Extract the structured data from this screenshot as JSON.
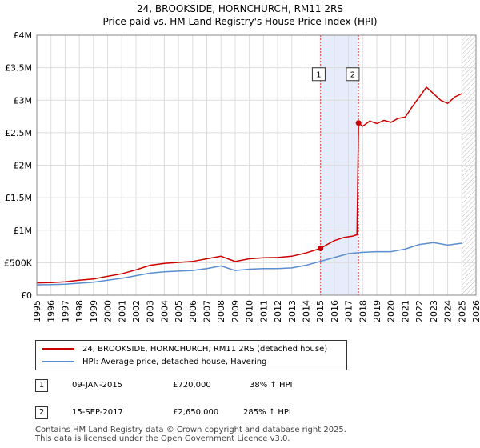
{
  "chart_data": {
    "type": "line",
    "title": "24, BROOKSIDE, HORNCHURCH, RM11 2RS",
    "subtitle": "Price paid vs. HM Land Registry's House Price Index (HPI)",
    "xlim": [
      1995,
      2026
    ],
    "ylim": [
      0,
      4000000
    ],
    "x_ticks": [
      "1995",
      "1996",
      "1997",
      "1998",
      "1999",
      "2000",
      "2001",
      "2002",
      "2003",
      "2004",
      "2005",
      "2006",
      "2007",
      "2008",
      "2009",
      "2010",
      "2011",
      "2012",
      "2013",
      "2014",
      "2015",
      "2016",
      "2017",
      "2018",
      "2019",
      "2020",
      "2021",
      "2022",
      "2023",
      "2024",
      "2025",
      "2026"
    ],
    "y_ticks": [
      {
        "value": 0,
        "label": "£0"
      },
      {
        "value": 500000,
        "label": "£500K"
      },
      {
        "value": 1000000,
        "label": "£1M"
      },
      {
        "value": 1500000,
        "label": "£1.5M"
      },
      {
        "value": 2000000,
        "label": "£2M"
      },
      {
        "value": 2500000,
        "label": "£2.5M"
      },
      {
        "value": 3000000,
        "label": "£3M"
      },
      {
        "value": 3500000,
        "label": "£3.5M"
      },
      {
        "value": 4000000,
        "label": "£4M"
      }
    ],
    "shaded_range": [
      2015.03,
      2017.71
    ],
    "hatched_from": 2025.0,
    "series": [
      {
        "name": "24, BROOKSIDE, HORNCHURCH, RM11 2RS (detached house)",
        "color": "#cc0000",
        "points": [
          [
            1995,
            190000
          ],
          [
            1996,
            195000
          ],
          [
            1997,
            205000
          ],
          [
            1998,
            230000
          ],
          [
            1999,
            250000
          ],
          [
            2000,
            290000
          ],
          [
            2001,
            330000
          ],
          [
            2002,
            390000
          ],
          [
            2003,
            460000
          ],
          [
            2004,
            490000
          ],
          [
            2005,
            505000
          ],
          [
            2006,
            520000
          ],
          [
            2007,
            560000
          ],
          [
            2008,
            600000
          ],
          [
            2009,
            520000
          ],
          [
            2010,
            560000
          ],
          [
            2011,
            575000
          ],
          [
            2012,
            580000
          ],
          [
            2013,
            600000
          ],
          [
            2014,
            650000
          ],
          [
            2015.03,
            720000
          ],
          [
            2015.5,
            780000
          ],
          [
            2016,
            840000
          ],
          [
            2016.7,
            890000
          ],
          [
            2017.3,
            910000
          ],
          [
            2017.6,
            930000
          ],
          [
            2017.71,
            2650000
          ],
          [
            2018,
            2600000
          ],
          [
            2018.5,
            2680000
          ],
          [
            2019,
            2640000
          ],
          [
            2019.5,
            2690000
          ],
          [
            2020,
            2660000
          ],
          [
            2020.5,
            2720000
          ],
          [
            2021,
            2740000
          ],
          [
            2021.5,
            2900000
          ],
          [
            2022,
            3050000
          ],
          [
            2022.5,
            3200000
          ],
          [
            2023,
            3100000
          ],
          [
            2023.5,
            3000000
          ],
          [
            2024,
            2950000
          ],
          [
            2024.5,
            3050000
          ],
          [
            2025,
            3100000
          ]
        ]
      },
      {
        "name": "HPI: Average price, detached house, Havering",
        "color": "#5b8ed0",
        "points": [
          [
            1995,
            160000
          ],
          [
            1996,
            162000
          ],
          [
            1997,
            170000
          ],
          [
            1998,
            185000
          ],
          [
            1999,
            200000
          ],
          [
            2000,
            230000
          ],
          [
            2001,
            260000
          ],
          [
            2002,
            300000
          ],
          [
            2003,
            340000
          ],
          [
            2004,
            360000
          ],
          [
            2005,
            370000
          ],
          [
            2006,
            380000
          ],
          [
            2007,
            410000
          ],
          [
            2008,
            450000
          ],
          [
            2009,
            380000
          ],
          [
            2010,
            400000
          ],
          [
            2011,
            410000
          ],
          [
            2012,
            410000
          ],
          [
            2013,
            420000
          ],
          [
            2014,
            460000
          ],
          [
            2015,
            520000
          ],
          [
            2016,
            580000
          ],
          [
            2017,
            640000
          ],
          [
            2018,
            660000
          ],
          [
            2019,
            670000
          ],
          [
            2020,
            670000
          ],
          [
            2021,
            710000
          ],
          [
            2022,
            780000
          ],
          [
            2023,
            810000
          ],
          [
            2024,
            770000
          ],
          [
            2025,
            800000
          ]
        ]
      }
    ],
    "annotations": [
      {
        "label": "1",
        "x": 2015.03,
        "value": 720000,
        "box_x": 2014.9,
        "box_y": 3400000
      },
      {
        "label": "2",
        "x": 2017.71,
        "value": 2650000,
        "box_x": 2017.3,
        "box_y": 3400000
      }
    ]
  },
  "legend": {
    "red_label": "24, BROOKSIDE, HORNCHURCH, RM11 2RS (detached house)",
    "blue_label": "HPI: Average price, detached house, Havering",
    "red_color": "#cc0000",
    "blue_color": "#5b8ed0"
  },
  "transactions": [
    {
      "num": "1",
      "date": "09-JAN-2015",
      "price": "£720,000",
      "hpi": "38% ↑ HPI"
    },
    {
      "num": "2",
      "date": "15-SEP-2017",
      "price": "£2,650,000",
      "hpi": "285% ↑ HPI"
    }
  ],
  "footer": {
    "line1": "Contains HM Land Registry data © Crown copyright and database right 2025.",
    "line2": "This data is licensed under the Open Government Licence v3.0."
  }
}
